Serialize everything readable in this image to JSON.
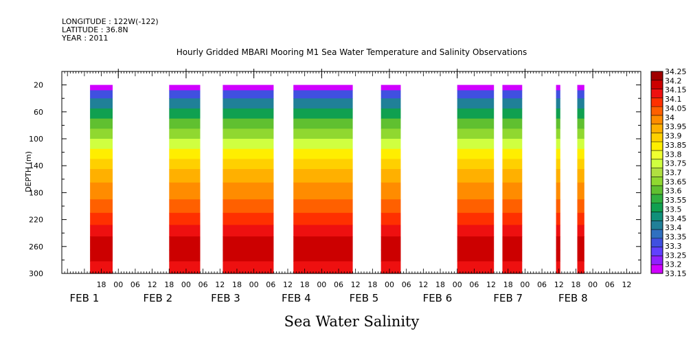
{
  "header": {
    "longitude": "LONGITUDE : 122W(-122)",
    "latitude": "LATITUDE : 36.8N",
    "year": "YEAR : 2011"
  },
  "chart_data": {
    "type": "heatmap",
    "title": "Hourly Gridded MBARI Mooring M1 Sea Water Temperature and Salinity Observations",
    "subtitle": "Sea Water Salinity",
    "ylabel": "DEPTH (m)",
    "xlabel": "",
    "ylim": [
      300,
      0
    ],
    "y_ticks": [
      20,
      60,
      100,
      140,
      180,
      220,
      260,
      300
    ],
    "x_tick_labels": [
      "18",
      "00",
      "06",
      "12",
      "18",
      "00",
      "06",
      "12",
      "18",
      "00",
      "06",
      "12",
      "18",
      "00",
      "06",
      "12",
      "18",
      "00",
      "06",
      "12",
      "18",
      "00",
      "06",
      "12",
      "18",
      "00",
      "06",
      "12",
      "18",
      "00",
      "06",
      "12"
    ],
    "x_tick_hours": [
      18,
      24,
      30,
      36,
      42,
      48,
      54,
      60,
      66,
      72,
      78,
      84,
      90,
      96,
      102,
      108,
      114,
      120,
      126,
      132,
      138,
      144,
      150,
      156,
      162,
      168,
      174,
      180,
      186,
      192,
      198,
      204
    ],
    "x_range_hours": [
      4,
      209
    ],
    "date_labels": [
      {
        "label": "FEB  1",
        "hour": 12
      },
      {
        "label": "FEB  2",
        "hour": 38
      },
      {
        "label": "FEB  3",
        "hour": 62
      },
      {
        "label": "FEB  4",
        "hour": 87
      },
      {
        "label": "FEB  5",
        "hour": 111
      },
      {
        "label": "FEB  6",
        "hour": 137
      },
      {
        "label": "FEB  7",
        "hour": 162
      },
      {
        "label": "FEB  8",
        "hour": 185
      }
    ],
    "data_segments_hours": [
      [
        14,
        22
      ],
      [
        42,
        53
      ],
      [
        61,
        79
      ],
      [
        86,
        107
      ],
      [
        117,
        124
      ],
      [
        144,
        157
      ],
      [
        160,
        167
      ],
      [
        179,
        180.5
      ],
      [
        186.5,
        189
      ]
    ],
    "depth_profile": [
      {
        "depth": 20,
        "value": 33.17
      },
      {
        "depth": 28,
        "value": 33.3
      },
      {
        "depth": 40,
        "value": 33.38
      },
      {
        "depth": 55,
        "value": 33.48
      },
      {
        "depth": 70,
        "value": 33.58
      },
      {
        "depth": 85,
        "value": 33.65
      },
      {
        "depth": 100,
        "value": 33.75
      },
      {
        "depth": 115,
        "value": 33.83
      },
      {
        "depth": 130,
        "value": 33.9
      },
      {
        "depth": 145,
        "value": 33.97
      },
      {
        "depth": 165,
        "value": 34.02
      },
      {
        "depth": 190,
        "value": 34.05
      },
      {
        "depth": 210,
        "value": 34.1
      },
      {
        "depth": 228,
        "value": 34.15
      },
      {
        "depth": 245,
        "value": 34.2
      },
      {
        "depth": 265,
        "value": 34.22
      },
      {
        "depth": 282,
        "value": 34.17
      },
      {
        "depth": 300,
        "value": 34.12
      }
    ],
    "colorbar_labels": [
      "34.25",
      "34.2",
      "34.15",
      "34.1",
      "34.05",
      "34",
      "33.95",
      "33.9",
      "33.85",
      "33.8",
      "33.75",
      "33.7",
      "33.65",
      "33.6",
      "33.55",
      "33.5",
      "33.45",
      "33.4",
      "33.35",
      "33.3",
      "33.25",
      "33.2",
      "33.15"
    ],
    "colorbar_colors": [
      "#a00000",
      "#cc0000",
      "#ee1010",
      "#ff3000",
      "#ff6000",
      "#ff8c00",
      "#ffb000",
      "#ffd000",
      "#ffee00",
      "#f0ff30",
      "#d0ff40",
      "#b0e040",
      "#90d830",
      "#60c030",
      "#30b040",
      "#10a050",
      "#10907a",
      "#208098",
      "#3070c0",
      "#4050e0",
      "#6040ff",
      "#9020ff",
      "#d000ff"
    ]
  }
}
